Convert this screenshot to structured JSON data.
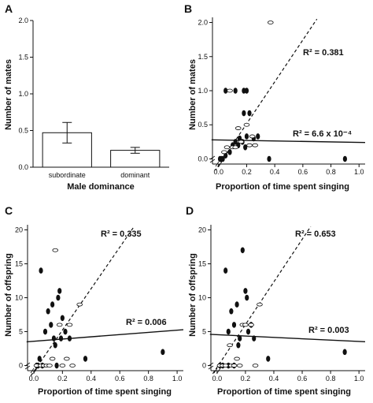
{
  "chart_data": [
    {
      "panel": "A",
      "type": "bar",
      "categories": [
        "subordinate",
        "dominant"
      ],
      "values": [
        0.47,
        0.23
      ],
      "errors": [
        0.14,
        0.04
      ],
      "xlabel": "Male dominance",
      "ylabel": "Number of mates",
      "ylim": [
        0,
        2.0
      ],
      "yticks": [
        "0.0",
        "0.5",
        "1.0",
        "1.5",
        "2.0"
      ]
    },
    {
      "panel": "B",
      "type": "scatter",
      "xlabel": "Proportion of time spent singing",
      "ylabel": "Number of mates",
      "xlim": [
        0,
        1.0
      ],
      "ylim": [
        0,
        2.0
      ],
      "xticks": [
        "0.0",
        "0.2",
        "0.4",
        "0.6",
        "0.8",
        "1.0"
      ],
      "yticks": [
        "0.0",
        "0.5",
        "1.0",
        "1.5",
        "2.0"
      ],
      "series": [
        {
          "marker": "filled",
          "points": [
            [
              0.01,
              0
            ],
            [
              0.02,
              0
            ],
            [
              0.03,
              0
            ],
            [
              0.05,
              0.05
            ],
            [
              0.08,
              0.1
            ],
            [
              0.1,
              0.2
            ],
            [
              0.12,
              0.25
            ],
            [
              0.14,
              0.2
            ],
            [
              0.15,
              0.3
            ],
            [
              0.17,
              0.25
            ],
            [
              0.18,
              0.67
            ],
            [
              0.2,
              0.33
            ],
            [
              0.22,
              0.67
            ],
            [
              0.25,
              0.3
            ],
            [
              0.12,
              1.0
            ],
            [
              0.18,
              1.0
            ],
            [
              0.2,
              1.0
            ],
            [
              0.28,
              0.33
            ],
            [
              0.36,
              0
            ],
            [
              0.9,
              0
            ],
            [
              0.05,
              1.0
            ],
            [
              0.19,
              0.17
            ]
          ]
        },
        {
          "marker": "open",
          "points": [
            [
              0.08,
              1.0
            ],
            [
              0.06,
              0.17
            ],
            [
              0.1,
              0.17
            ],
            [
              0.12,
              0.17
            ],
            [
              0.14,
              0.45
            ],
            [
              0.2,
              0.5
            ],
            [
              0.22,
              0.2
            ],
            [
              0.24,
              0.33
            ],
            [
              0.37,
              2.0
            ],
            [
              0.04,
              0.1
            ],
            [
              0.26,
              0.2
            ],
            [
              0.16,
              0.25
            ]
          ]
        }
      ],
      "fit_lines": [
        {
          "style": "dashed",
          "r2_label": "R² = 0.381",
          "x0": -0.05,
          "y0": -0.25,
          "x1": 0.7,
          "y1": 2.05
        },
        {
          "style": "solid",
          "r2_label": "R² = 6.6 x 10⁻⁴",
          "x0": -0.05,
          "y0": 0.28,
          "x1": 1.05,
          "y1": 0.24
        }
      ]
    },
    {
      "panel": "C",
      "type": "scatter",
      "xlabel": "Proportion of time spent singing",
      "ylabel": "Number of offspring",
      "xlim": [
        0,
        1.0
      ],
      "ylim": [
        0,
        20
      ],
      "xticks": [
        "0.0",
        "0.2",
        "0.4",
        "0.6",
        "0.8",
        "1.0"
      ],
      "yticks": [
        "0",
        "5",
        "10",
        "15",
        "20"
      ],
      "series": [
        {
          "marker": "filled",
          "points": [
            [
              0.02,
              0
            ],
            [
              0.03,
              0
            ],
            [
              0.04,
              1
            ],
            [
              0.05,
              14
            ],
            [
              0.06,
              0
            ],
            [
              0.08,
              5
            ],
            [
              0.1,
              8
            ],
            [
              0.12,
              6
            ],
            [
              0.13,
              9
            ],
            [
              0.14,
              4
            ],
            [
              0.15,
              3
            ],
            [
              0.17,
              10
            ],
            [
              0.18,
              11
            ],
            [
              0.19,
              4
            ],
            [
              0.2,
              7
            ],
            [
              0.22,
              5
            ],
            [
              0.25,
              4
            ],
            [
              0.36,
              1
            ],
            [
              0.9,
              2
            ],
            [
              0.16,
              0
            ]
          ]
        },
        {
          "marker": "open",
          "points": [
            [
              0.15,
              17
            ],
            [
              0.02,
              0
            ],
            [
              0.05,
              0
            ],
            [
              0.07,
              0
            ],
            [
              0.09,
              0
            ],
            [
              0.11,
              0
            ],
            [
              0.2,
              0
            ],
            [
              0.23,
              1
            ],
            [
              0.25,
              6
            ],
            [
              0.32,
              9
            ],
            [
              0.18,
              6
            ],
            [
              0.27,
              0
            ],
            [
              0.13,
              1
            ]
          ]
        }
      ],
      "fit_lines": [
        {
          "style": "dashed",
          "r2_label": "R² = 0.335",
          "x0": -0.02,
          "y0": -1.5,
          "x1": 0.7,
          "y1": 20.5
        },
        {
          "style": "solid",
          "r2_label": "R² = 0.006",
          "x0": -0.05,
          "y0": 3.5,
          "x1": 1.05,
          "y1": 5.3
        }
      ]
    },
    {
      "panel": "D",
      "type": "scatter",
      "xlabel": "Proportion of time spent singing",
      "ylabel": "Number of offspring",
      "xlim": [
        0,
        1.0
      ],
      "ylim": [
        0,
        20
      ],
      "xticks": [
        "0.0",
        "0.2",
        "0.4",
        "0.6",
        "0.8",
        "1.0"
      ],
      "yticks": [
        "0",
        "5",
        "10",
        "15",
        "20"
      ],
      "series": [
        {
          "marker": "filled",
          "points": [
            [
              0.02,
              0
            ],
            [
              0.04,
              0
            ],
            [
              0.06,
              14
            ],
            [
              0.08,
              5
            ],
            [
              0.1,
              8
            ],
            [
              0.12,
              6
            ],
            [
              0.14,
              9
            ],
            [
              0.15,
              3
            ],
            [
              0.16,
              4
            ],
            [
              0.18,
              17
            ],
            [
              0.2,
              11
            ],
            [
              0.21,
              10
            ],
            [
              0.22,
              5
            ],
            [
              0.24,
              6
            ],
            [
              0.26,
              4
            ],
            [
              0.36,
              1
            ],
            [
              0.9,
              2
            ],
            [
              0.12,
              0
            ],
            [
              0.08,
              0
            ]
          ]
        },
        {
          "marker": "open",
          "points": [
            [
              0.02,
              0
            ],
            [
              0.04,
              0
            ],
            [
              0.06,
              0
            ],
            [
              0.09,
              3
            ],
            [
              0.1,
              0
            ],
            [
              0.12,
              0
            ],
            [
              0.14,
              1
            ],
            [
              0.18,
              6
            ],
            [
              0.2,
              6
            ],
            [
              0.24,
              6
            ],
            [
              0.3,
              9
            ],
            [
              0.27,
              0
            ],
            [
              0.16,
              0
            ]
          ]
        }
      ],
      "fit_lines": [
        {
          "style": "dashed",
          "r2_label": "R² = 0.653",
          "x0": -0.03,
          "y0": -1.2,
          "x1": 0.66,
          "y1": 20.5
        },
        {
          "style": "solid",
          "r2_label": "R² = 0.003",
          "x0": -0.05,
          "y0": 4.6,
          "x1": 1.05,
          "y1": 3.5
        }
      ]
    }
  ]
}
